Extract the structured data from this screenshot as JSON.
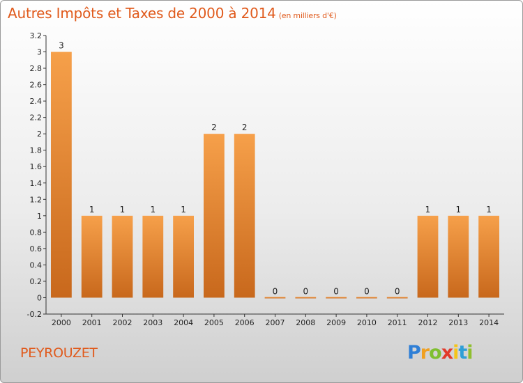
{
  "header": {
    "title": "Autres Impôts et Taxes de 2000 à 2014",
    "unit": "(en milliers d'€)"
  },
  "footer": {
    "commune": "PEYROUZET",
    "logo_letters": [
      "P",
      "r",
      "o",
      "x",
      "i",
      "t",
      "i"
    ],
    "logo_colors": [
      "#2f7fd6",
      "#f0a020",
      "#7fbf2f",
      "#e23a2a",
      "#f5c518",
      "#2f9fd6",
      "#8fbf2f"
    ]
  },
  "colors": {
    "bar_light": "#f6a04a",
    "bar_dark": "#c8681c",
    "text": "#222222",
    "title": "#e05a1c"
  },
  "chart_data": {
    "type": "bar",
    "title": "Autres Impôts et Taxes de 2000 à 2014",
    "categories": [
      "2000",
      "2001",
      "2002",
      "2003",
      "2004",
      "2005",
      "2006",
      "2007",
      "2008",
      "2009",
      "2010",
      "2011",
      "2012",
      "2013",
      "2014"
    ],
    "values": [
      3,
      1,
      1,
      1,
      1,
      2,
      2,
      0,
      0,
      0,
      0,
      0,
      1,
      1,
      1
    ],
    "data_labels": [
      "3",
      "1",
      "1",
      "1",
      "1",
      "2",
      "2",
      "0",
      "0",
      "0",
      "0",
      "0",
      "1",
      "1",
      "1"
    ],
    "yticks": [
      "-0.2",
      "0",
      "0.2",
      "0.4",
      "0.6",
      "0.8",
      "1",
      "1.2",
      "1.4",
      "1.6",
      "1.8",
      "2",
      "2.2",
      "2.4",
      "2.6",
      "2.8",
      "3",
      "3.2"
    ],
    "ylim": [
      -0.2,
      3.2
    ],
    "grid": false,
    "legend": "none"
  }
}
